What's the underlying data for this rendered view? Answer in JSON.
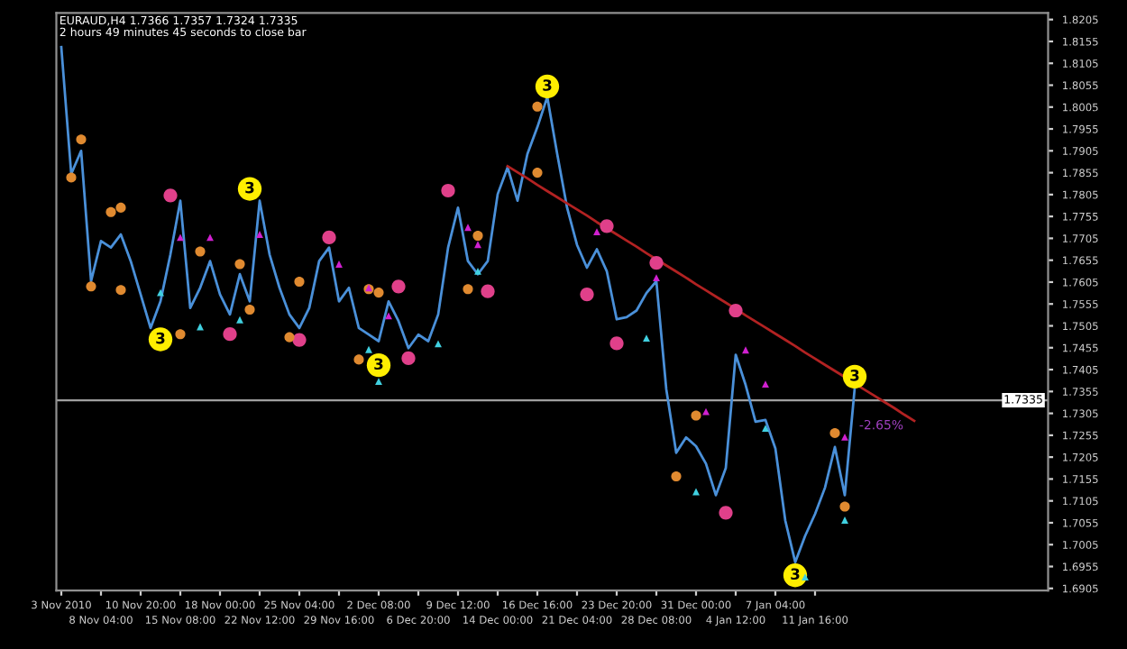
{
  "chart_data": {
    "type": "line",
    "title": "EURAUD,H4 1.7366 1.7357 1.7324 1.7335",
    "subtitle": "2 hours 49 minutes 45 seconds to close bar",
    "categories": [
      "3 Nov 2010",
      null,
      null,
      null,
      "8 Nov 04:00",
      null,
      null,
      null,
      "10 Nov 20:00",
      null,
      null,
      null,
      "15 Nov 08:00",
      null,
      null,
      null,
      "18 Nov 00:00",
      null,
      null,
      null,
      "22 Nov 12:00",
      null,
      null,
      null,
      "25 Nov 04:00",
      null,
      null,
      null,
      "29 Nov 16:00",
      null,
      null,
      null,
      "2 Dec 08:00",
      null,
      null,
      null,
      "6 Dec 20:00",
      null,
      null,
      null,
      "9 Dec 12:00",
      null,
      null,
      null,
      "14 Dec 00:00",
      null,
      null,
      null,
      "16 Dec 16:00",
      null,
      null,
      null,
      "21 Dec 04:00",
      null,
      null,
      null,
      "23 Dec 20:00",
      null,
      null,
      null,
      "28 Dec 08:00",
      null,
      null,
      null,
      "31 Dec 00:00",
      null,
      null,
      null,
      "4 Jan 12:00",
      null,
      null,
      null,
      "7 Jan 04:00",
      null,
      null,
      null,
      "11 Jan 16:00",
      null,
      null,
      null,
      null,
      null,
      null,
      null,
      null,
      null,
      null,
      null,
      null,
      null,
      null,
      null,
      null,
      null,
      null,
      null,
      null,
      null,
      null,
      null
    ],
    "ylim": [
      1.69,
      1.822
    ],
    "yticks": [
      1.6905,
      1.6955,
      1.7005,
      1.7055,
      1.7105,
      1.7155,
      1.7205,
      1.7255,
      1.7305,
      1.7355,
      1.7405,
      1.7455,
      1.7505,
      1.7555,
      1.7605,
      1.7655,
      1.7705,
      1.7755,
      1.7805,
      1.7855,
      1.7905,
      1.7955,
      1.8005,
      1.8055,
      1.8105,
      1.8155,
      1.8205
    ],
    "grid": false,
    "line_style": "solid",
    "ref_lines": [
      {
        "axis": "y",
        "value": 1.7335,
        "label": "1.7335",
        "color": "#a0a0a0"
      }
    ],
    "annotations": [
      "3",
      "3",
      "3",
      "3",
      "3",
      "3",
      "-2.65%"
    ],
    "series": [
      {
        "color": "#4a90d9",
        "marker": "none",
        "values": [
          1.8142,
          1.7852,
          1.7905,
          1.7607,
          1.7699,
          1.7684,
          1.7714,
          1.7653,
          1.7577,
          1.75,
          1.7561,
          1.7668,
          1.7791,
          1.7546,
          1.7592,
          1.7653,
          1.7577,
          1.7531,
          1.7623,
          1.7561,
          1.7791,
          1.7668,
          1.7592,
          1.7531,
          1.75,
          1.7546,
          1.7653,
          1.7684,
          1.7561,
          1.7592,
          1.75,
          1.7485,
          1.747,
          1.7561,
          1.7516,
          1.7454,
          1.7485,
          1.747,
          1.7531,
          1.7684,
          1.7775,
          1.7653,
          1.7623,
          1.7653,
          1.7806,
          1.7867,
          1.7791,
          1.7898,
          1.7959,
          1.8028,
          1.7898,
          1.7775,
          1.769,
          1.7638,
          1.768,
          1.763,
          1.752,
          1.7525,
          1.754,
          1.758,
          1.7607,
          1.736,
          1.7215,
          1.725,
          1.723,
          1.719,
          1.7118,
          1.718,
          1.7439,
          1.737,
          1.7286,
          1.729,
          1.7225,
          1.706,
          1.6965,
          1.7025,
          1.7075,
          1.7135,
          1.7228,
          1.7118,
          1.7363,
          null,
          null,
          null,
          null,
          null,
          null,
          null,
          null,
          null,
          null,
          null,
          null,
          null,
          null,
          null,
          null,
          null,
          null,
          null
        ]
      },
      {
        "color": "#b22222",
        "marker": "none",
        "values": [
          null,
          null,
          null,
          null,
          null,
          null,
          null,
          null,
          null,
          null,
          null,
          null,
          null,
          null,
          null,
          null,
          null,
          null,
          null,
          null,
          null,
          null,
          null,
          null,
          null,
          null,
          null,
          null,
          null,
          null,
          null,
          null,
          null,
          null,
          null,
          null,
          null,
          null,
          null,
          null,
          null,
          null,
          null,
          null,
          null,
          1.787,
          1.7856,
          1.7842,
          1.7827,
          1.7813,
          1.7799,
          1.7785,
          1.7771,
          1.7757,
          1.7742,
          1.7728,
          1.7714,
          1.77,
          1.7686,
          1.7671,
          1.7657,
          1.7643,
          1.7629,
          1.7615,
          1.76,
          1.7586,
          1.7572,
          1.7558,
          1.7544,
          1.7529,
          1.7515,
          1.7501,
          1.7487,
          1.7473,
          1.7459,
          1.7444,
          1.743,
          1.7416,
          1.7402,
          1.7388,
          1.7373,
          1.7359,
          1.7345,
          1.7331,
          1.7317,
          1.7302,
          1.7288,
          null,
          null,
          null,
          null,
          null,
          null,
          null,
          null,
          null,
          null,
          null,
          null,
          null
        ]
      },
      {
        "type": "scatter",
        "color": "#ffee00",
        "marker": "circle",
        "values": [
          null,
          null,
          null,
          null,
          null,
          null,
          null,
          null,
          null,
          null,
          1.7474,
          null,
          null,
          null,
          null,
          null,
          null,
          null,
          null,
          1.7818,
          null,
          null,
          null,
          null,
          null,
          null,
          null,
          null,
          null,
          null,
          null,
          null,
          1.7415,
          null,
          null,
          null,
          null,
          null,
          null,
          null,
          null,
          null,
          null,
          null,
          null,
          null,
          null,
          null,
          null,
          1.8052,
          null,
          null,
          null,
          null,
          null,
          null,
          null,
          null,
          null,
          null,
          null,
          null,
          null,
          null,
          null,
          null,
          null,
          null,
          null,
          null,
          null,
          null,
          null,
          null,
          1.6935,
          null,
          null,
          null,
          null,
          null,
          1.7389,
          null,
          null,
          null,
          null,
          null,
          null,
          null,
          null,
          null,
          null,
          null,
          null,
          null,
          null,
          null,
          null,
          null,
          null,
          null
        ]
      },
      {
        "type": "scatter",
        "color": "#e0408a",
        "marker": "circle",
        "values": [
          null,
          null,
          null,
          null,
          null,
          null,
          null,
          null,
          null,
          null,
          null,
          1.7803,
          null,
          null,
          null,
          null,
          null,
          1.7486,
          null,
          null,
          null,
          null,
          null,
          null,
          1.7473,
          null,
          null,
          1.7707,
          null,
          null,
          null,
          null,
          null,
          null,
          1.7595,
          1.7431,
          null,
          null,
          null,
          1.7814,
          null,
          null,
          null,
          1.7584,
          null,
          null,
          null,
          null,
          null,
          null,
          null,
          null,
          null,
          1.7577,
          null,
          1.7733,
          1.7465,
          null,
          null,
          null,
          1.7649,
          null,
          null,
          null,
          null,
          null,
          null,
          1.7078,
          1.754,
          null,
          null,
          null,
          null,
          null,
          null,
          null,
          null,
          null,
          null,
          null,
          null,
          null,
          null,
          null,
          null,
          null,
          null,
          null,
          null,
          null,
          null,
          null,
          null,
          null,
          null,
          null,
          null,
          null,
          null,
          null
        ]
      },
      {
        "type": "scatter",
        "color": "#e08a30",
        "marker": "circle",
        "values": [
          null,
          null,
          1.7931,
          null,
          null,
          1.7765,
          1.7775,
          null,
          null,
          null,
          null,
          null,
          null,
          null,
          1.7675,
          null,
          null,
          null,
          1.7646,
          null,
          null,
          null,
          null,
          null,
          1.7606,
          null,
          null,
          null,
          null,
          null,
          null,
          1.7589,
          1.7581,
          null,
          null,
          null,
          null,
          null,
          null,
          null,
          null,
          null,
          1.7711,
          null,
          null,
          null,
          null,
          null,
          1.8006,
          null,
          null,
          null,
          null,
          null,
          null,
          null,
          null,
          null,
          null,
          null,
          null,
          null,
          null,
          null,
          1.73,
          null,
          null,
          null,
          null,
          null,
          null,
          null,
          null,
          null,
          null,
          null,
          null,
          null,
          1.726,
          null,
          null,
          null,
          null,
          null,
          null,
          null,
          null,
          null,
          null,
          null,
          null,
          null,
          null,
          null,
          null,
          null,
          null,
          null,
          null,
          null
        ]
      },
      {
        "type": "scatter",
        "color": "#e08a30",
        "marker": "circle",
        "values": [
          null,
          1.7844,
          null,
          1.7595,
          null,
          null,
          1.7587,
          null,
          null,
          null,
          null,
          null,
          1.7486,
          null,
          null,
          null,
          null,
          null,
          null,
          1.7542,
          null,
          null,
          null,
          1.7479,
          null,
          null,
          null,
          null,
          null,
          null,
          1.7428,
          null,
          null,
          null,
          null,
          null,
          null,
          null,
          null,
          null,
          null,
          1.7589,
          null,
          null,
          null,
          null,
          null,
          null,
          1.7855,
          null,
          null,
          null,
          null,
          null,
          null,
          null,
          null,
          null,
          null,
          null,
          null,
          null,
          1.7161,
          null,
          null,
          null,
          null,
          null,
          null,
          null,
          null,
          null,
          null,
          null,
          null,
          null,
          null,
          null,
          null,
          1.7092,
          null,
          null,
          null,
          null,
          null,
          null,
          null,
          null,
          null,
          null,
          null,
          null,
          null,
          null,
          null,
          null,
          null,
          null,
          null,
          null
        ]
      },
      {
        "type": "scatter",
        "color": "#d020d0",
        "marker": "triangle",
        "values": [
          null,
          null,
          null,
          null,
          null,
          null,
          null,
          null,
          null,
          null,
          null,
          null,
          1.7707,
          null,
          null,
          1.7707,
          null,
          null,
          null,
          null,
          1.7714,
          null,
          null,
          null,
          null,
          null,
          null,
          null,
          1.7646,
          null,
          null,
          1.7592,
          null,
          1.7528,
          null,
          null,
          null,
          null,
          null,
          null,
          null,
          1.773,
          1.7691,
          null,
          null,
          null,
          null,
          null,
          null,
          null,
          null,
          null,
          null,
          null,
          1.772,
          null,
          null,
          null,
          null,
          null,
          1.7615,
          null,
          null,
          null,
          null,
          1.7309,
          null,
          null,
          null,
          1.745,
          null,
          1.7372,
          null,
          null,
          null,
          null,
          null,
          null,
          null,
          1.7251,
          null,
          null,
          null,
          null,
          null,
          null,
          null,
          null,
          null,
          null,
          null,
          null,
          null,
          null,
          null,
          null,
          null,
          null,
          null,
          null
        ]
      },
      {
        "type": "scatter",
        "color": "#40d0e0",
        "marker": "triangle",
        "values": [
          null,
          null,
          null,
          null,
          null,
          null,
          null,
          null,
          null,
          null,
          1.7581,
          null,
          null,
          null,
          1.7503,
          null,
          null,
          null,
          1.7519,
          null,
          null,
          null,
          null,
          null,
          null,
          null,
          null,
          null,
          null,
          null,
          null,
          1.7451,
          1.7378,
          null,
          null,
          null,
          null,
          null,
          1.7464,
          null,
          null,
          null,
          1.763,
          null,
          null,
          null,
          null,
          null,
          null,
          null,
          null,
          null,
          null,
          null,
          null,
          null,
          null,
          null,
          null,
          1.7477,
          null,
          null,
          null,
          null,
          1.7126,
          null,
          null,
          null,
          null,
          null,
          null,
          1.7271,
          null,
          null,
          null,
          1.6931,
          null,
          null,
          null,
          1.7061,
          null,
          null,
          null,
          null,
          null,
          null,
          null,
          null,
          null,
          null,
          null,
          null,
          null,
          null,
          null,
          null,
          null,
          null,
          null,
          null
        ]
      }
    ]
  }
}
